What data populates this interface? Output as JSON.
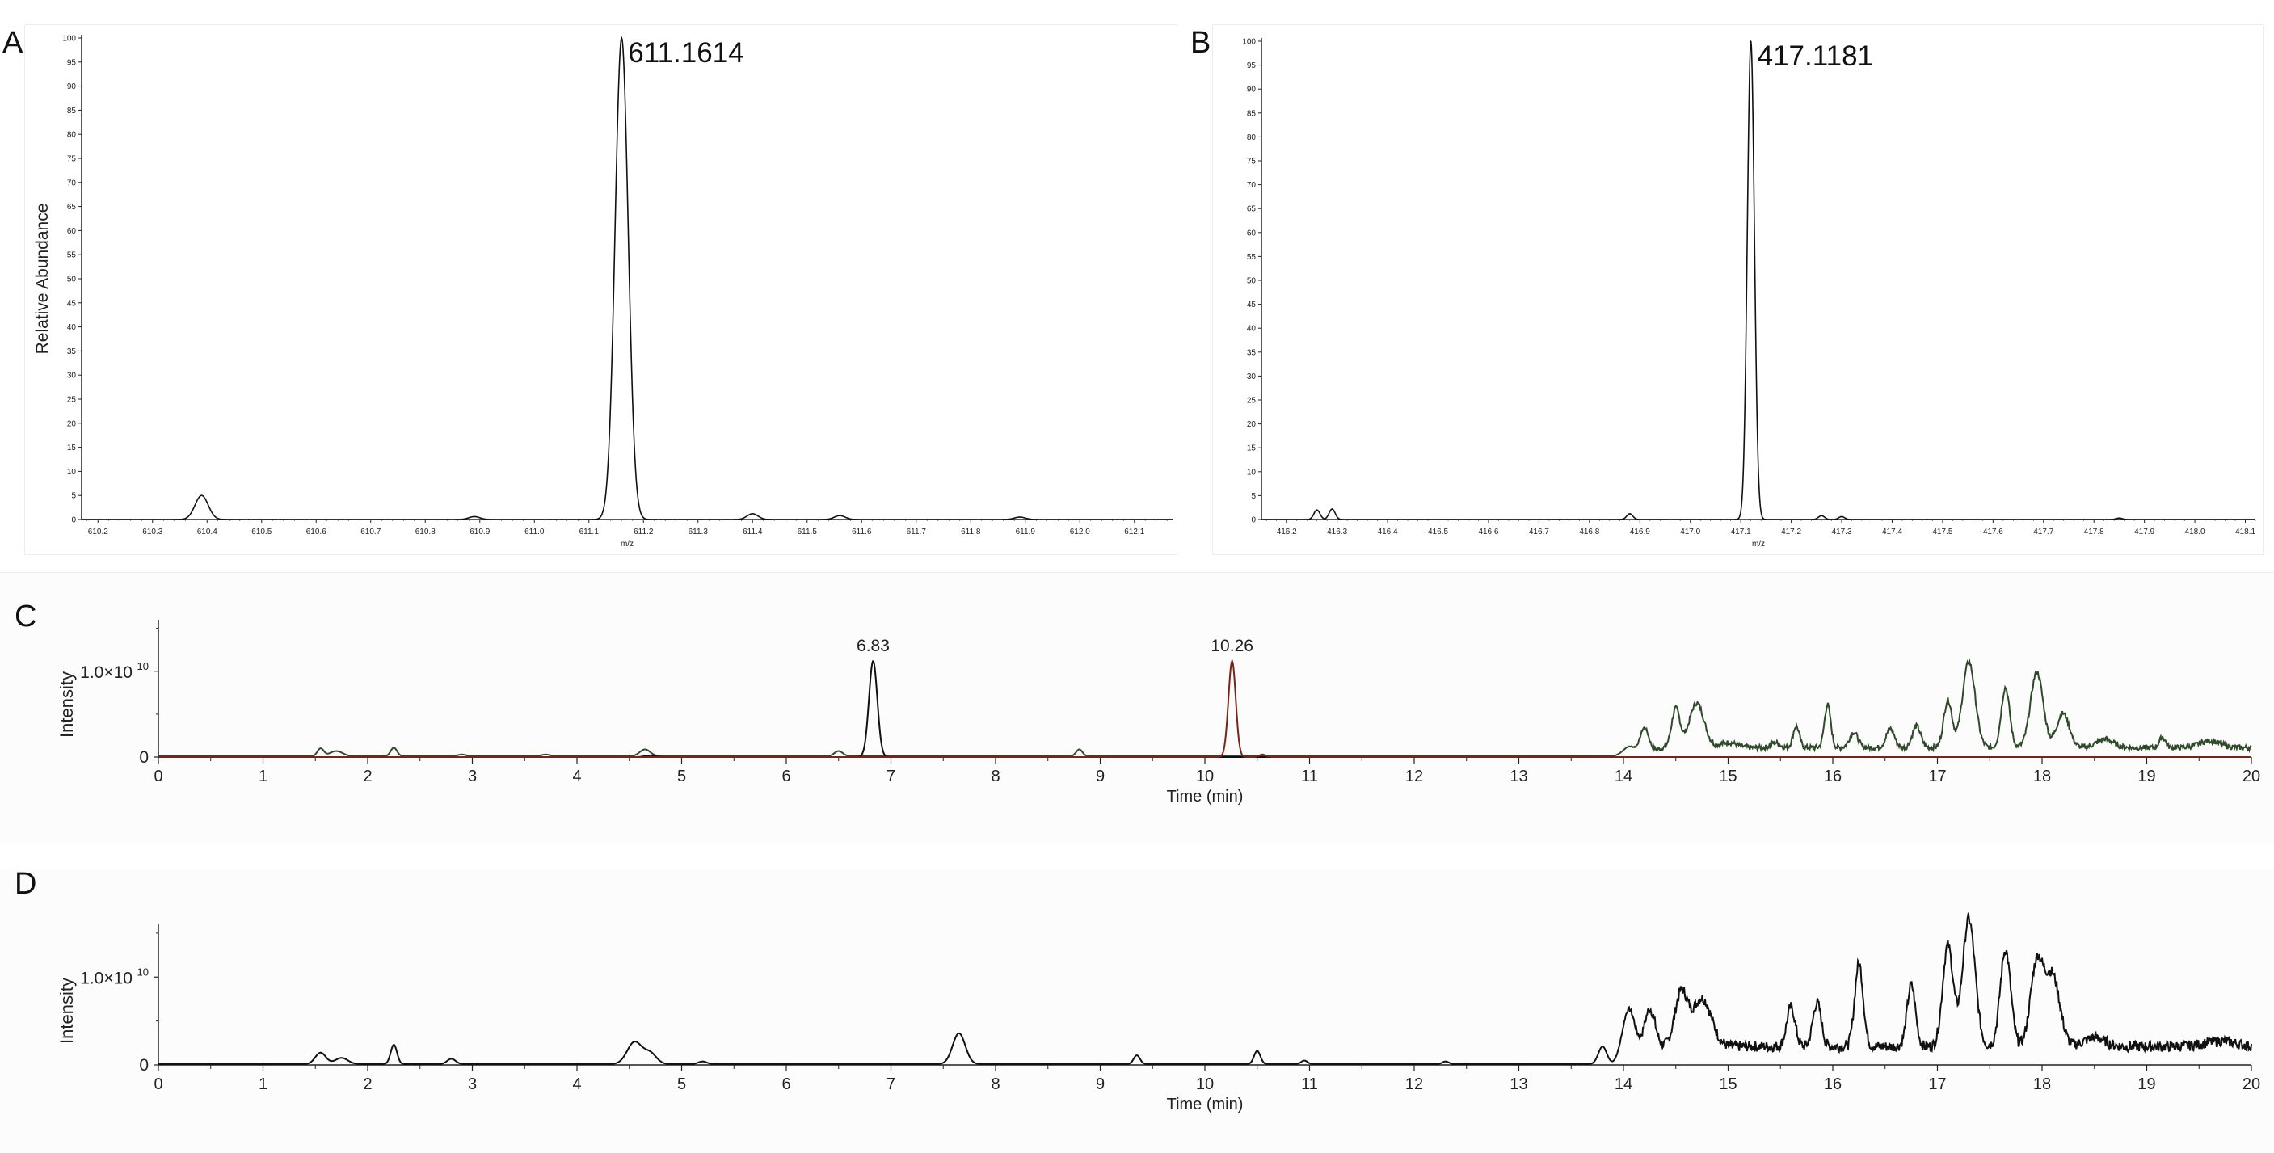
{
  "chart_data": [
    {
      "id": "A",
      "type": "line",
      "subtype": "mass-spectrum",
      "panel_label": "A",
      "peak_label": "611.1614",
      "xlabel": "m/z",
      "ylabel": "Relative Abundance",
      "xlim": [
        610.17,
        612.17
      ],
      "ylim": [
        0,
        100
      ],
      "x_ticks": [
        "610.2",
        "610.3",
        "610.4",
        "610.5",
        "610.6",
        "610.7",
        "610.8",
        "610.9",
        "611.0",
        "611.1",
        "611.2",
        "611.3",
        "611.4",
        "611.5",
        "611.6",
        "611.7",
        "611.8",
        "611.9",
        "612.0",
        "612.1"
      ],
      "y_ticks": [
        "0",
        "5",
        "10",
        "15",
        "20",
        "25",
        "30",
        "35",
        "40",
        "45",
        "50",
        "55",
        "60",
        "65",
        "70",
        "75",
        "80",
        "85",
        "90",
        "95",
        "100"
      ],
      "peaks": [
        {
          "mz": 610.39,
          "abundance": 5,
          "width": 0.012
        },
        {
          "mz": 610.89,
          "abundance": 0.6,
          "width": 0.01
        },
        {
          "mz": 611.16,
          "abundance": 100,
          "width": 0.012
        },
        {
          "mz": 611.4,
          "abundance": 1.2,
          "width": 0.01
        },
        {
          "mz": 611.56,
          "abundance": 0.8,
          "width": 0.01
        },
        {
          "mz": 611.89,
          "abundance": 0.5,
          "width": 0.01
        }
      ]
    },
    {
      "id": "B",
      "type": "line",
      "subtype": "mass-spectrum",
      "panel_label": "B",
      "peak_label": "417.1181",
      "xlabel": "m/z",
      "ylabel": "",
      "xlim": [
        416.15,
        418.12
      ],
      "ylim": [
        0,
        100
      ],
      "x_ticks": [
        "416.2",
        "416.3",
        "416.4",
        "416.5",
        "416.6",
        "416.7",
        "416.8",
        "416.9",
        "417.0",
        "417.1",
        "417.2",
        "417.3",
        "417.4",
        "417.5",
        "417.6",
        "417.7",
        "417.8",
        "417.9",
        "418.0",
        "418.1"
      ],
      "y_ticks": [
        "0",
        "5",
        "10",
        "15",
        "20",
        "25",
        "30",
        "35",
        "40",
        "45",
        "50",
        "55",
        "60",
        "65",
        "70",
        "75",
        "80",
        "85",
        "90",
        "95",
        "100"
      ],
      "peaks": [
        {
          "mz": 416.26,
          "abundance": 2,
          "width": 0.006
        },
        {
          "mz": 416.29,
          "abundance": 2.2,
          "width": 0.006
        },
        {
          "mz": 416.88,
          "abundance": 1.2,
          "width": 0.006
        },
        {
          "mz": 417.12,
          "abundance": 100,
          "width": 0.007
        },
        {
          "mz": 417.26,
          "abundance": 0.8,
          "width": 0.006
        },
        {
          "mz": 417.3,
          "abundance": 0.6,
          "width": 0.006
        },
        {
          "mz": 417.85,
          "abundance": 0.3,
          "width": 0.006
        }
      ]
    },
    {
      "id": "C",
      "type": "line",
      "subtype": "chromatogram",
      "panel_label": "C",
      "xlabel": "Time (min)",
      "ylabel": "Intensity",
      "xlim": [
        0,
        20
      ],
      "ylim": [
        0,
        1.6
      ],
      "y_unit_note": "intensity in units of 1.0×10^10",
      "x_ticks": [
        "0",
        "1",
        "2",
        "3",
        "4",
        "5",
        "6",
        "7",
        "8",
        "9",
        "10",
        "11",
        "12",
        "13",
        "14",
        "15",
        "16",
        "17",
        "18",
        "19",
        "20"
      ],
      "y_tick_zero": "0",
      "y_tick_main": "1.0×10",
      "y_tick_exp": "10",
      "peak_labels": [
        {
          "time": 6.83,
          "text": "6.83"
        },
        {
          "time": 10.26,
          "text": "10.26"
        }
      ],
      "series": [
        {
          "name": "overlay-green",
          "color": "#2f4a2a",
          "baseline": 0.01,
          "plateau": {
            "start": 14.0,
            "end": 20.0,
            "level": 0.1
          },
          "peaks": [
            {
              "t": 1.55,
              "h": 0.09,
              "w": 0.03
            },
            {
              "t": 1.7,
              "h": 0.06,
              "w": 0.06
            },
            {
              "t": 2.25,
              "h": 0.1,
              "w": 0.03
            },
            {
              "t": 2.9,
              "h": 0.02,
              "w": 0.04
            },
            {
              "t": 3.7,
              "h": 0.02,
              "w": 0.04
            },
            {
              "t": 4.65,
              "h": 0.08,
              "w": 0.05
            },
            {
              "t": 6.5,
              "h": 0.06,
              "w": 0.04
            },
            {
              "t": 8.8,
              "h": 0.08,
              "w": 0.03
            },
            {
              "t": 14.05,
              "h": 0.1,
              "w": 0.06
            },
            {
              "t": 14.2,
              "h": 0.28,
              "w": 0.04
            },
            {
              "t": 14.5,
              "h": 0.45,
              "w": 0.04
            },
            {
              "t": 14.7,
              "h": 0.52,
              "w": 0.07
            },
            {
              "t": 15.0,
              "h": 0.06,
              "w": 0.08
            },
            {
              "t": 15.45,
              "h": 0.06,
              "w": 0.04
            },
            {
              "t": 15.65,
              "h": 0.25,
              "w": 0.03
            },
            {
              "t": 15.95,
              "h": 0.5,
              "w": 0.03
            },
            {
              "t": 16.2,
              "h": 0.18,
              "w": 0.04
            },
            {
              "t": 16.55,
              "h": 0.22,
              "w": 0.04
            },
            {
              "t": 16.8,
              "h": 0.25,
              "w": 0.04
            },
            {
              "t": 17.1,
              "h": 0.55,
              "w": 0.04
            },
            {
              "t": 17.3,
              "h": 1.0,
              "w": 0.06
            },
            {
              "t": 17.65,
              "h": 0.7,
              "w": 0.04
            },
            {
              "t": 17.95,
              "h": 0.88,
              "w": 0.06
            },
            {
              "t": 18.2,
              "h": 0.4,
              "w": 0.06
            },
            {
              "t": 18.6,
              "h": 0.1,
              "w": 0.08
            },
            {
              "t": 19.15,
              "h": 0.12,
              "w": 0.03
            },
            {
              "t": 19.6,
              "h": 0.08,
              "w": 0.1
            }
          ]
        },
        {
          "name": "extracted-black",
          "color": "#111111",
          "baseline": 0,
          "peaks": [
            {
              "t": 6.83,
              "h": 1.12,
              "w": 0.04
            },
            {
              "t": 4.7,
              "h": 0.02,
              "w": 0.05
            }
          ]
        },
        {
          "name": "extracted-red",
          "color": "#7a2418",
          "baseline": 0,
          "peaks": [
            {
              "t": 10.26,
              "h": 1.12,
              "w": 0.035
            },
            {
              "t": 10.55,
              "h": 0.03,
              "w": 0.03
            }
          ]
        }
      ]
    },
    {
      "id": "D",
      "type": "line",
      "subtype": "chromatogram",
      "panel_label": "D",
      "xlabel": "Time (min)",
      "ylabel": "Intensity",
      "xlim": [
        0,
        20
      ],
      "ylim": [
        0,
        1.6
      ],
      "y_unit_note": "intensity in units of 1.0×10^10",
      "x_ticks": [
        "0",
        "1",
        "2",
        "3",
        "4",
        "5",
        "6",
        "7",
        "8",
        "9",
        "10",
        "11",
        "12",
        "13",
        "14",
        "15",
        "16",
        "17",
        "18",
        "19",
        "20"
      ],
      "y_tick_zero": "0",
      "y_tick_main": "1.0×10",
      "y_tick_exp": "10",
      "peak_labels": [],
      "series": [
        {
          "name": "sample",
          "color": "#111111",
          "baseline": 0.01,
          "plateau": {
            "start": 13.9,
            "end": 20.0,
            "level": 0.2
          },
          "peaks": [
            {
              "t": 1.55,
              "h": 0.13,
              "w": 0.05
            },
            {
              "t": 1.75,
              "h": 0.07,
              "w": 0.06
            },
            {
              "t": 2.25,
              "h": 0.22,
              "w": 0.03
            },
            {
              "t": 2.8,
              "h": 0.06,
              "w": 0.04
            },
            {
              "t": 4.55,
              "h": 0.25,
              "w": 0.07
            },
            {
              "t": 4.7,
              "h": 0.12,
              "w": 0.06
            },
            {
              "t": 5.2,
              "h": 0.03,
              "w": 0.04
            },
            {
              "t": 7.65,
              "h": 0.35,
              "w": 0.06
            },
            {
              "t": 9.35,
              "h": 0.1,
              "w": 0.03
            },
            {
              "t": 10.5,
              "h": 0.15,
              "w": 0.03
            },
            {
              "t": 10.95,
              "h": 0.04,
              "w": 0.03
            },
            {
              "t": 12.3,
              "h": 0.03,
              "w": 0.03
            },
            {
              "t": 13.8,
              "h": 0.2,
              "w": 0.04
            },
            {
              "t": 14.05,
              "h": 0.55,
              "w": 0.06
            },
            {
              "t": 14.25,
              "h": 0.45,
              "w": 0.05
            },
            {
              "t": 14.55,
              "h": 0.6,
              "w": 0.06
            },
            {
              "t": 14.75,
              "h": 0.55,
              "w": 0.09
            },
            {
              "t": 15.6,
              "h": 0.45,
              "w": 0.04
            },
            {
              "t": 15.85,
              "h": 0.5,
              "w": 0.04
            },
            {
              "t": 16.25,
              "h": 0.95,
              "w": 0.04
            },
            {
              "t": 16.75,
              "h": 0.7,
              "w": 0.04
            },
            {
              "t": 17.1,
              "h": 1.15,
              "w": 0.05
            },
            {
              "t": 17.3,
              "h": 1.45,
              "w": 0.06
            },
            {
              "t": 17.65,
              "h": 1.1,
              "w": 0.05
            },
            {
              "t": 17.95,
              "h": 0.95,
              "w": 0.06
            },
            {
              "t": 18.1,
              "h": 0.8,
              "w": 0.07
            },
            {
              "t": 18.5,
              "h": 0.1,
              "w": 0.1
            },
            {
              "t": 19.7,
              "h": 0.06,
              "w": 0.15
            }
          ]
        }
      ]
    }
  ]
}
